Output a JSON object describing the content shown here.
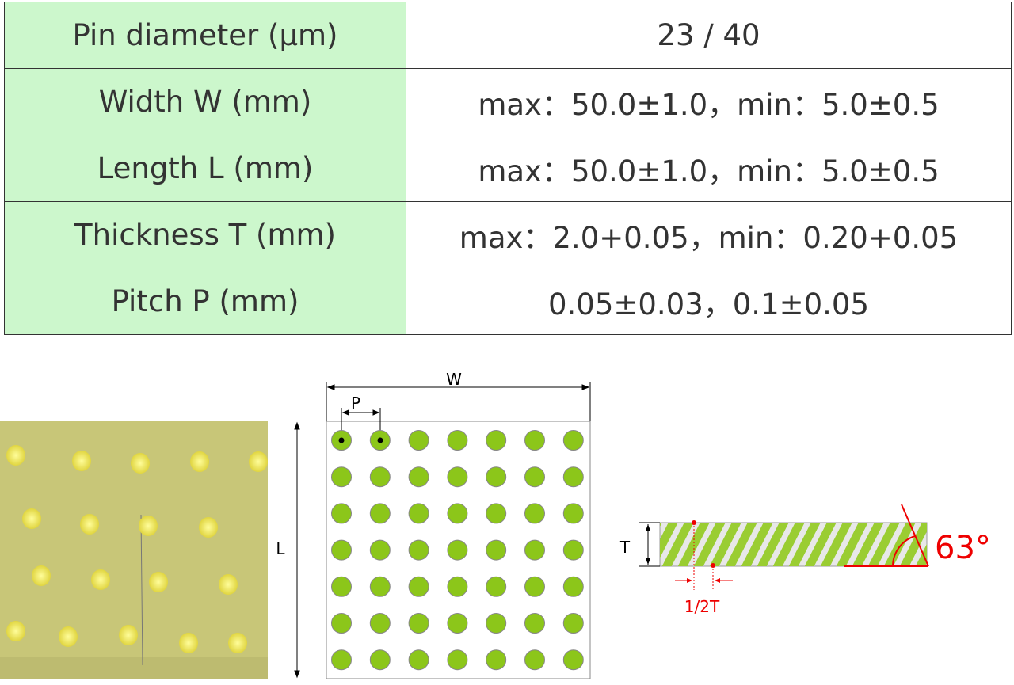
{
  "table": {
    "rows": [
      [
        "Pin diameter (μm)",
        "23 / 40"
      ],
      [
        "Width W (mm)",
        "max：50.0±1.0，min：5.0±0.5"
      ],
      [
        "Length L (mm)",
        "max：50.0±1.0，min：5.0±0.5"
      ],
      [
        "Thickness T (mm)",
        "max：2.0+0.05，min：0.20+0.05"
      ],
      [
        "Pitch P (mm)",
        "0.05±0.03，0.1±0.05"
      ]
    ]
  },
  "grid_diagram": {
    "width_label": "W",
    "pitch_label": "P",
    "length_label": "L"
  },
  "side_diagram": {
    "thickness_label": "T",
    "angle_label": "63°",
    "offset_label": "1/2T"
  }
}
